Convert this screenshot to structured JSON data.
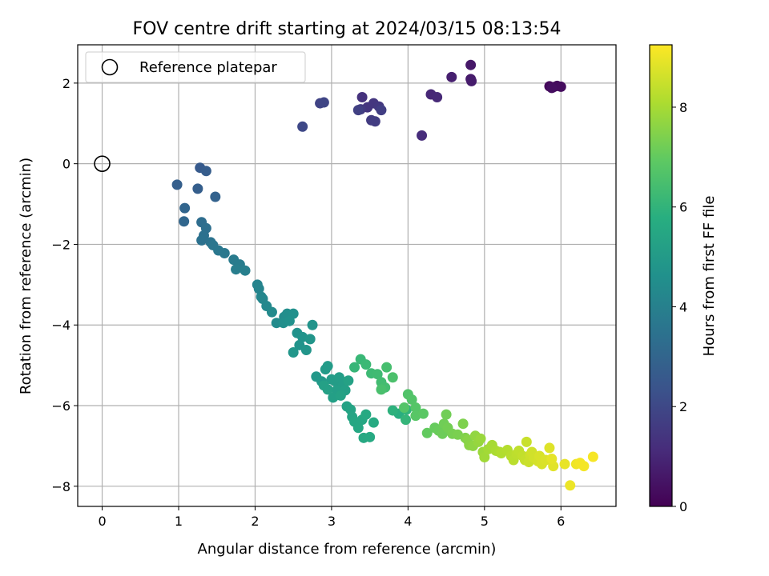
{
  "chart_data": {
    "type": "scatter",
    "title": "FOV centre drift starting at 2024/03/15 08:13:54",
    "xlabel": "Angular distance from reference (arcmin)",
    "ylabel": "Rotation from reference (arcmin)",
    "xlim": [
      -0.32,
      6.72
    ],
    "ylim": [
      -8.5,
      2.95
    ],
    "xticks": [
      0,
      1,
      2,
      3,
      4,
      5,
      6
    ],
    "yticks": [
      -8,
      -6,
      -4,
      -2,
      0,
      2
    ],
    "grid": true,
    "legend": {
      "placement": "top-left",
      "entries": [
        "Reference platepar"
      ]
    },
    "reference_point": {
      "x": 0,
      "y": 0
    },
    "colorbar": {
      "label": "Hours from first FF file",
      "range": [
        0,
        9.25
      ],
      "ticks": [
        0,
        2,
        4,
        6,
        8
      ],
      "colormap": "viridis"
    },
    "points": [
      [
        5.85,
        1.92,
        0.15
      ],
      [
        5.9,
        1.9,
        0.2
      ],
      [
        5.95,
        1.93,
        0.25
      ],
      [
        6.0,
        1.91,
        0.3
      ],
      [
        5.88,
        1.88,
        0.35
      ],
      [
        4.82,
        2.45,
        0.6
      ],
      [
        4.82,
        2.1,
        0.65
      ],
      [
        4.83,
        2.05,
        0.7
      ],
      [
        4.57,
        2.15,
        0.8
      ],
      [
        4.3,
        1.72,
        1.0
      ],
      [
        4.38,
        1.65,
        1.05
      ],
      [
        4.18,
        0.7,
        1.15
      ],
      [
        3.4,
        1.65,
        1.3
      ],
      [
        3.47,
        1.4,
        1.4
      ],
      [
        3.55,
        1.5,
        1.45
      ],
      [
        3.62,
        1.42,
        1.5
      ],
      [
        3.38,
        1.35,
        1.55
      ],
      [
        3.52,
        1.08,
        1.6
      ],
      [
        3.57,
        1.05,
        1.65
      ],
      [
        3.65,
        1.33,
        1.7
      ],
      [
        3.35,
        1.33,
        1.75
      ],
      [
        2.85,
        1.5,
        1.85
      ],
      [
        2.9,
        1.52,
        1.9
      ],
      [
        2.62,
        0.92,
        2.0
      ],
      [
        1.28,
        -0.1,
        2.6
      ],
      [
        1.36,
        -0.18,
        2.7
      ],
      [
        1.25,
        -0.62,
        2.75
      ],
      [
        0.98,
        -0.52,
        2.8
      ],
      [
        1.48,
        -0.82,
        2.9
      ],
      [
        1.08,
        -1.1,
        3.0
      ],
      [
        1.07,
        -1.43,
        3.05
      ],
      [
        1.3,
        -1.45,
        3.3
      ],
      [
        1.36,
        -1.6,
        3.35
      ],
      [
        1.33,
        -1.78,
        3.4
      ],
      [
        1.3,
        -1.9,
        3.45
      ],
      [
        1.42,
        -1.95,
        3.5
      ],
      [
        1.45,
        -2.02,
        3.6
      ],
      [
        1.52,
        -2.15,
        3.65
      ],
      [
        1.6,
        -2.22,
        3.7
      ],
      [
        1.72,
        -2.38,
        3.8
      ],
      [
        1.8,
        -2.5,
        3.85
      ],
      [
        1.75,
        -2.62,
        3.9
      ],
      [
        1.87,
        -2.65,
        3.95
      ],
      [
        2.03,
        -3.0,
        4.1
      ],
      [
        2.05,
        -3.1,
        4.15
      ],
      [
        2.08,
        -3.3,
        4.2
      ],
      [
        2.1,
        -3.35,
        4.25
      ],
      [
        2.15,
        -3.53,
        4.3
      ],
      [
        2.22,
        -3.68,
        4.35
      ],
      [
        2.28,
        -3.95,
        4.4
      ],
      [
        2.38,
        -3.8,
        4.45
      ],
      [
        2.42,
        -3.72,
        4.5
      ],
      [
        2.37,
        -3.95,
        4.55
      ],
      [
        2.5,
        -3.72,
        4.6
      ],
      [
        2.45,
        -3.9,
        4.62
      ],
      [
        2.55,
        -4.2,
        4.65
      ],
      [
        2.62,
        -4.3,
        4.7
      ],
      [
        2.58,
        -4.5,
        4.72
      ],
      [
        2.75,
        -4.0,
        4.75
      ],
      [
        2.72,
        -4.35,
        4.78
      ],
      [
        2.67,
        -4.62,
        4.8
      ],
      [
        2.5,
        -4.68,
        4.82
      ],
      [
        2.8,
        -5.28,
        4.9
      ],
      [
        2.87,
        -5.4,
        4.95
      ],
      [
        2.92,
        -5.1,
        5.0
      ],
      [
        2.95,
        -5.02,
        5.02
      ],
      [
        3.0,
        -5.35,
        5.05
      ],
      [
        3.05,
        -5.4,
        5.08
      ],
      [
        3.1,
        -5.3,
        5.1
      ],
      [
        3.15,
        -5.5,
        5.12
      ],
      [
        3.07,
        -5.62,
        5.15
      ],
      [
        3.18,
        -5.62,
        5.18
      ],
      [
        3.02,
        -5.8,
        5.2
      ],
      [
        2.95,
        -5.6,
        5.22
      ],
      [
        2.9,
        -5.5,
        5.24
      ],
      [
        3.22,
        -5.38,
        5.26
      ],
      [
        3.12,
        -5.75,
        5.28
      ],
      [
        3.2,
        -6.02,
        5.3
      ],
      [
        3.25,
        -6.1,
        5.35
      ],
      [
        3.27,
        -6.28,
        5.4
      ],
      [
        3.3,
        -6.4,
        5.45
      ],
      [
        3.35,
        -6.55,
        5.5
      ],
      [
        3.4,
        -6.35,
        5.52
      ],
      [
        3.42,
        -6.8,
        5.55
      ],
      [
        3.5,
        -6.78,
        5.58
      ],
      [
        3.45,
        -6.22,
        5.6
      ],
      [
        3.55,
        -6.42,
        5.62
      ],
      [
        3.88,
        -6.2,
        5.8
      ],
      [
        3.8,
        -6.12,
        5.9
      ],
      [
        3.98,
        -6.1,
        6.0
      ],
      [
        3.97,
        -6.35,
        6.05
      ],
      [
        3.3,
        -5.05,
        6.1
      ],
      [
        3.38,
        -4.85,
        6.15
      ],
      [
        3.45,
        -4.98,
        6.2
      ],
      [
        3.52,
        -5.2,
        6.25
      ],
      [
        3.6,
        -5.22,
        6.3
      ],
      [
        3.65,
        -5.42,
        6.35
      ],
      [
        3.7,
        -5.55,
        6.4
      ],
      [
        3.72,
        -5.05,
        6.45
      ],
      [
        3.65,
        -5.6,
        6.5
      ],
      [
        3.8,
        -5.3,
        6.55
      ],
      [
        4.0,
        -5.72,
        6.65
      ],
      [
        4.05,
        -5.85,
        6.7
      ],
      [
        4.1,
        -6.05,
        6.75
      ],
      [
        3.95,
        -6.05,
        6.72
      ],
      [
        4.1,
        -6.25,
        6.8
      ],
      [
        4.2,
        -6.2,
        6.85
      ],
      [
        4.25,
        -6.68,
        7.0
      ],
      [
        4.35,
        -6.55,
        7.05
      ],
      [
        4.4,
        -6.62,
        7.1
      ],
      [
        4.45,
        -6.7,
        7.15
      ],
      [
        4.47,
        -6.45,
        7.2
      ],
      [
        4.5,
        -6.22,
        7.22
      ],
      [
        4.52,
        -6.55,
        7.25
      ],
      [
        4.58,
        -6.7,
        7.3
      ],
      [
        4.65,
        -6.72,
        7.35
      ],
      [
        4.72,
        -6.45,
        7.4
      ],
      [
        4.75,
        -6.8,
        7.45
      ],
      [
        4.78,
        -6.85,
        7.55
      ],
      [
        4.8,
        -6.98,
        7.6
      ],
      [
        4.85,
        -7.0,
        7.65
      ],
      [
        4.88,
        -6.75,
        7.7
      ],
      [
        4.92,
        -6.9,
        7.75
      ],
      [
        4.95,
        -6.82,
        7.8
      ],
      [
        4.98,
        -7.15,
        7.85
      ],
      [
        5.0,
        -7.28,
        7.9
      ],
      [
        5.05,
        -7.08,
        7.95
      ],
      [
        5.1,
        -6.98,
        8.0
      ],
      [
        5.15,
        -7.12,
        8.05
      ],
      [
        5.2,
        -7.15,
        8.1
      ],
      [
        5.22,
        -7.18,
        8.15
      ],
      [
        5.3,
        -7.1,
        8.2
      ],
      [
        5.35,
        -7.25,
        8.25
      ],
      [
        5.38,
        -7.35,
        8.28
      ],
      [
        5.42,
        -7.2,
        8.32
      ],
      [
        5.45,
        -7.12,
        8.36
      ],
      [
        5.5,
        -7.25,
        8.4
      ],
      [
        5.53,
        -7.35,
        8.44
      ],
      [
        5.55,
        -6.9,
        8.48
      ],
      [
        5.58,
        -7.4,
        8.52
      ],
      [
        5.6,
        -7.22,
        8.56
      ],
      [
        5.62,
        -7.15,
        8.6
      ],
      [
        5.65,
        -7.3,
        8.62
      ],
      [
        5.7,
        -7.38,
        8.66
      ],
      [
        5.72,
        -7.25,
        8.7
      ],
      [
        5.75,
        -7.45,
        8.72
      ],
      [
        5.8,
        -7.35,
        8.76
      ],
      [
        5.85,
        -7.05,
        8.8
      ],
      [
        5.9,
        -7.5,
        8.85
      ],
      [
        5.88,
        -7.32,
        8.9
      ],
      [
        6.05,
        -7.45,
        8.95
      ],
      [
        6.12,
        -7.98,
        9.0
      ],
      [
        6.2,
        -7.45,
        9.05
      ],
      [
        6.25,
        -7.42,
        9.1
      ],
      [
        6.3,
        -7.5,
        9.12
      ],
      [
        6.42,
        -7.27,
        9.15
      ]
    ]
  }
}
